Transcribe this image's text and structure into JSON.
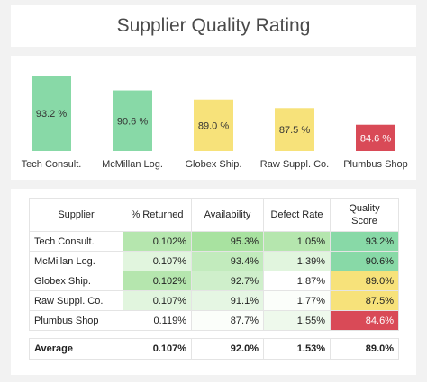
{
  "page": {
    "title": "Supplier Quality Rating"
  },
  "colors": {
    "high": "#88d9a7",
    "mid": "#f7e27a",
    "low": "#d94a57",
    "returned_scale": "#a8e2a0",
    "availability_scale": "#a8e2a0",
    "defect_scale": "#a8e2a0"
  },
  "chart_data": {
    "type": "bar",
    "categories": [
      "Tech Consult.",
      "McMillan Log.",
      "Globex Ship.",
      "Raw Suppl. Co.",
      "Plumbus Shop"
    ],
    "values": [
      93.2,
      90.6,
      89.0,
      87.5,
      84.6
    ],
    "data_labels": [
      "93.2 %",
      "90.6 %",
      "89.0 %",
      "87.5 %",
      "84.6 %"
    ],
    "bar_colors": [
      "#88d9a7",
      "#88d9a7",
      "#f7e27a",
      "#f7e27a",
      "#d94a57"
    ],
    "title": "",
    "xlabel": "",
    "ylabel": "",
    "grid": false,
    "legend": "none"
  },
  "table": {
    "headers": [
      "Supplier",
      "% Returned",
      "Availability",
      "Defect Rate",
      "Quality Score"
    ],
    "rows": [
      {
        "supplier": "Tech Consult.",
        "returned": "0.102%",
        "availability": "95.3%",
        "defect": "1.05%",
        "score": "93.2%",
        "shades": {
          "returned": 0.85,
          "availability": 1.0,
          "defect": 0.85
        },
        "score_color": "#88d9a7"
      },
      {
        "supplier": "McMillan Log.",
        "returned": "0.107%",
        "availability": "93.4%",
        "defect": "1.39%",
        "score": "90.6%",
        "shades": {
          "returned": 0.35,
          "availability": 0.7,
          "defect": 0.35
        },
        "score_color": "#88d9a7"
      },
      {
        "supplier": "Globex Ship.",
        "returned": "0.102%",
        "availability": "92.7%",
        "defect": "1.87%",
        "score": "89.0%",
        "shades": {
          "returned": 0.85,
          "availability": 0.55,
          "defect": 0.0
        },
        "score_color": "#f7e27a"
      },
      {
        "supplier": "Raw Suppl. Co.",
        "returned": "0.107%",
        "availability": "91.1%",
        "defect": "1.77%",
        "score": "87.5%",
        "shades": {
          "returned": 0.35,
          "availability": 0.3,
          "defect": 0.05
        },
        "score_color": "#f7e27a"
      },
      {
        "supplier": "Plumbus Shop",
        "returned": "0.119%",
        "availability": "87.7%",
        "defect": "1.55%",
        "score": "84.6%",
        "shades": {
          "returned": 0.0,
          "availability": 0.05,
          "defect": 0.2
        },
        "score_color": "#d94a57"
      }
    ],
    "average": {
      "label": "Average",
      "returned": "0.107%",
      "availability": "92.0%",
      "defect": "1.53%",
      "score": "89.0%"
    }
  }
}
